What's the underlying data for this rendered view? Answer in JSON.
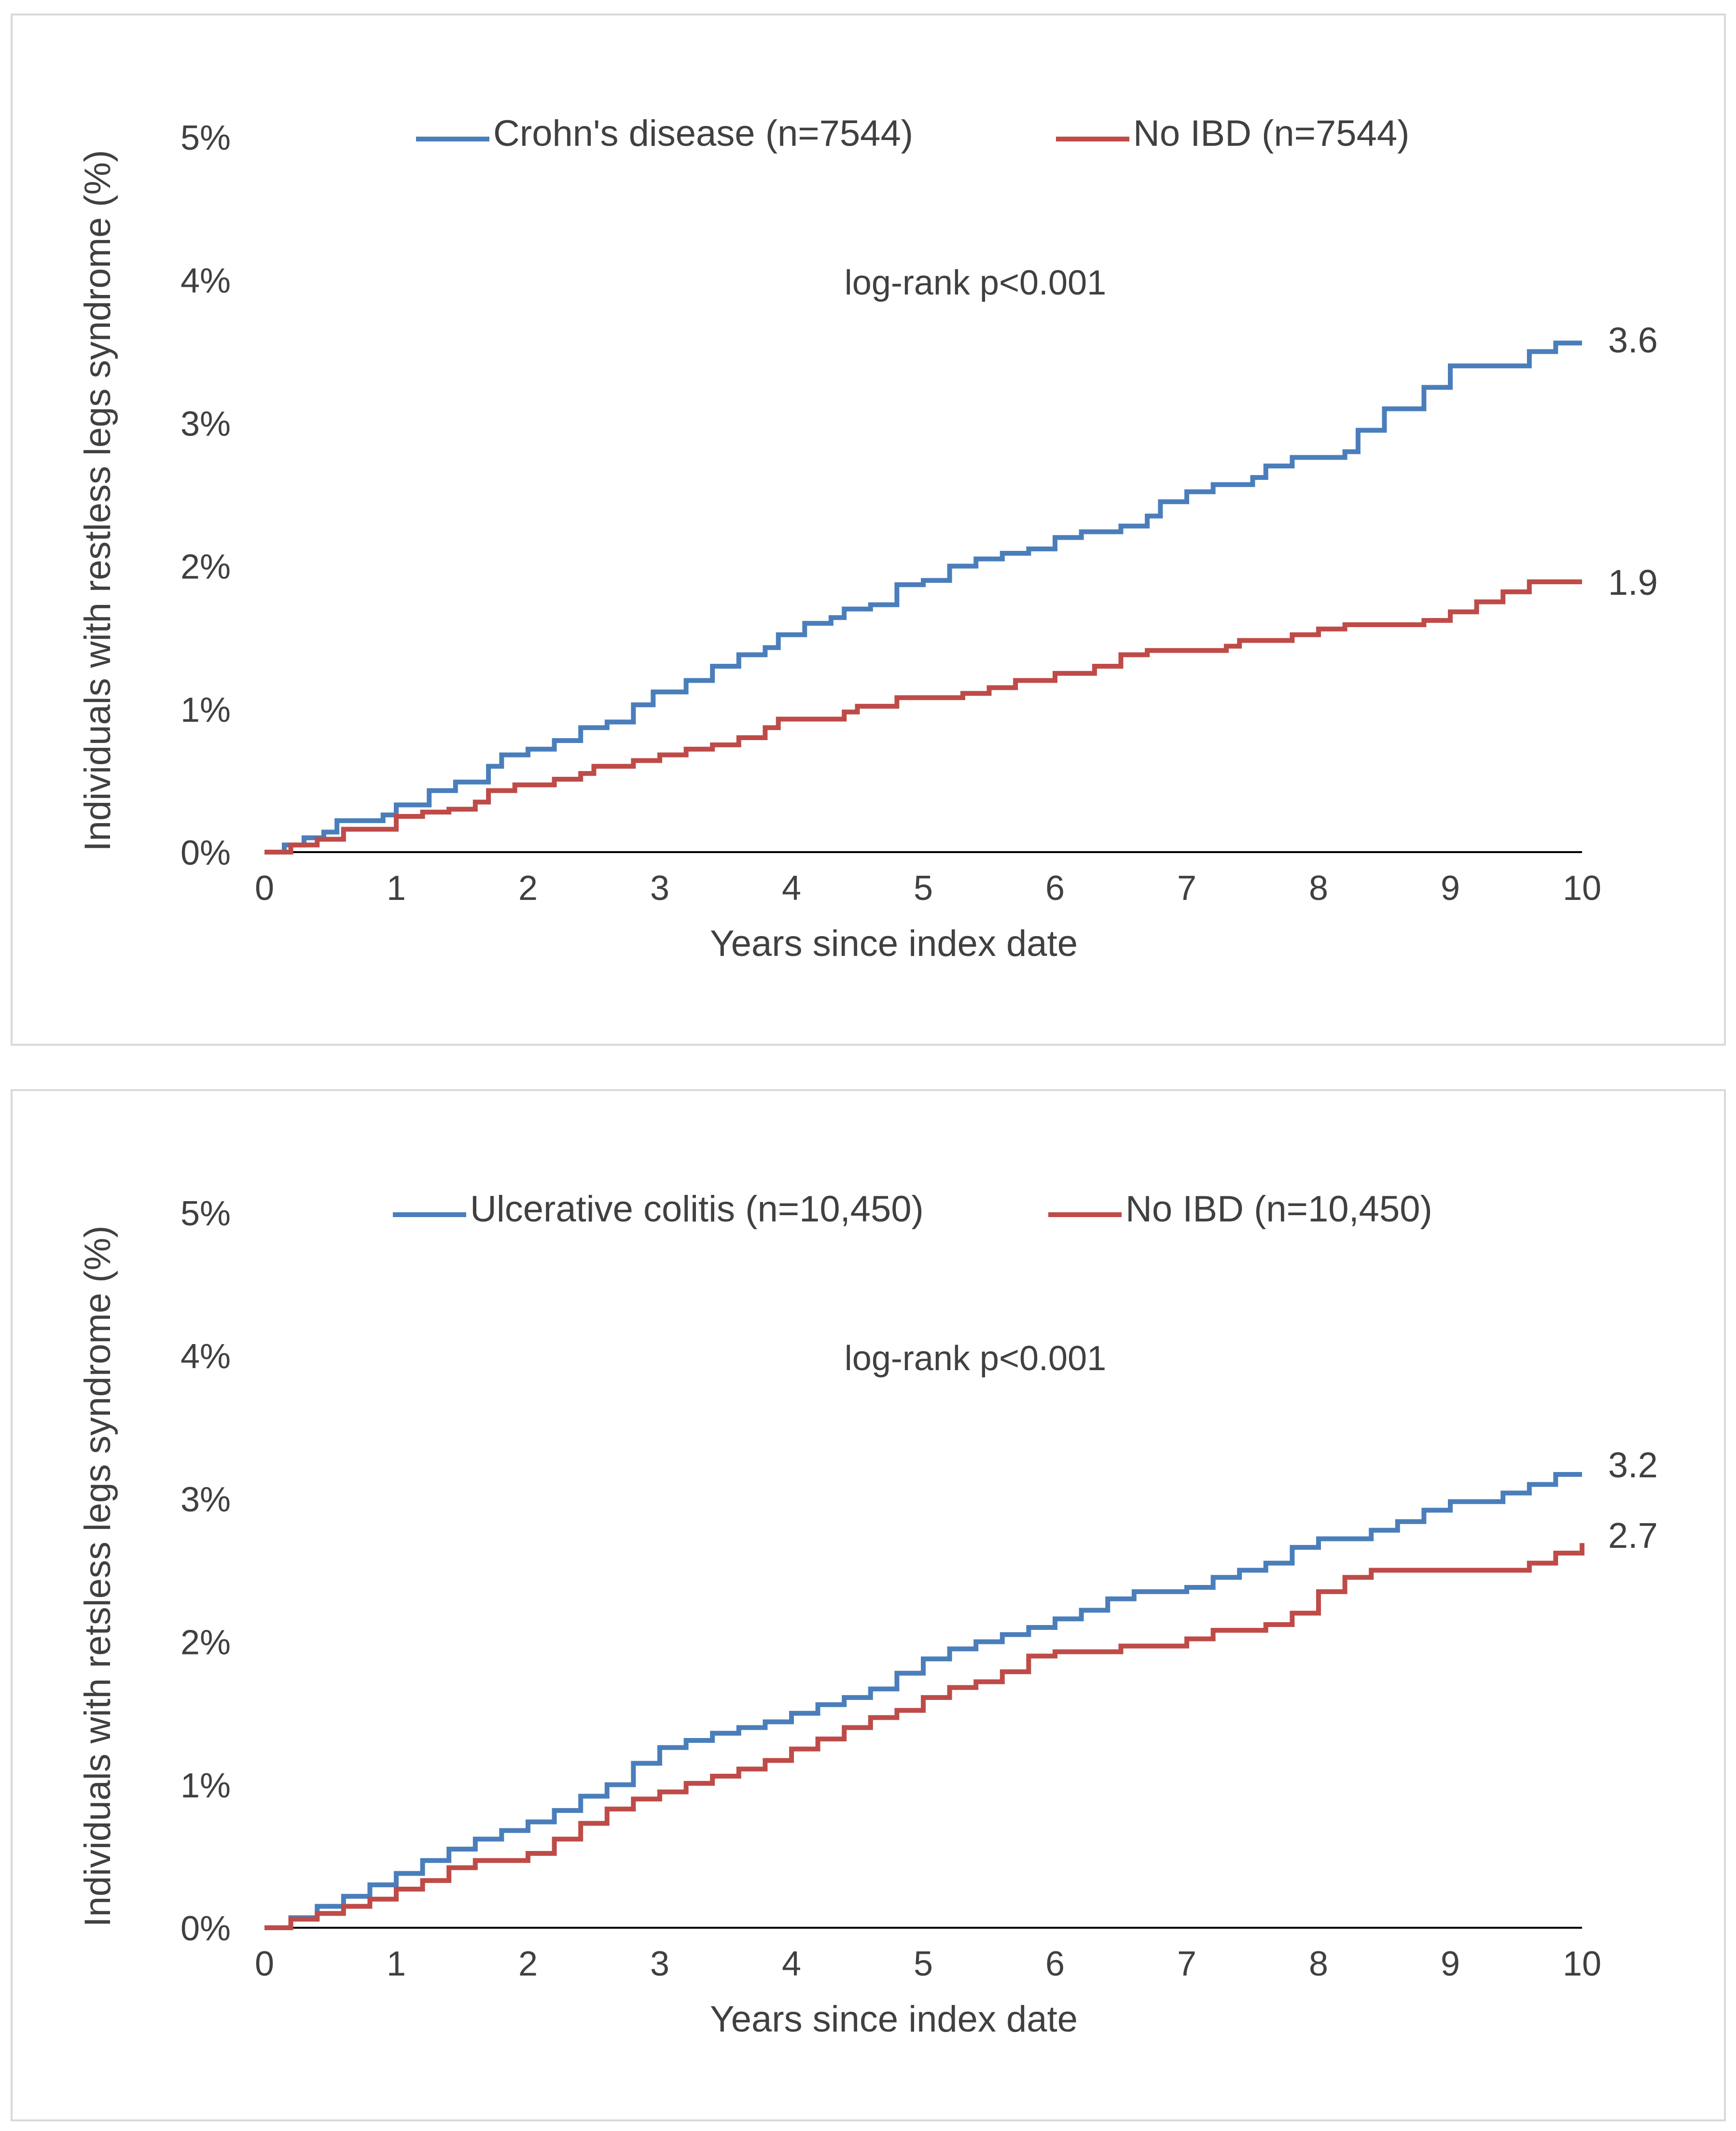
{
  "colors": {
    "series_blue": "#4a7ebb",
    "series_red": "#be4b48",
    "axis": "#000000",
    "text": "#404040",
    "panel_border": "#d9d9d9"
  },
  "chart_data": [
    {
      "type": "line",
      "step": true,
      "title": "",
      "xlabel": "Years since index date",
      "ylabel": "Individuals with restless legs syndrome (%)",
      "xlim": [
        0,
        10
      ],
      "ylim": [
        0,
        5
      ],
      "xticks": [
        "0",
        "1",
        "2",
        "3",
        "4",
        "5",
        "6",
        "7",
        "8",
        "9",
        "10"
      ],
      "yticks": [
        "0%",
        "1%",
        "2%",
        "3%",
        "4%",
        "5%"
      ],
      "legend_position": "top",
      "annotation": "log-rank p<0.001",
      "series": [
        {
          "name": "Crohn's disease (n=7544)",
          "color": "#4a7ebb",
          "end_label": "3.6",
          "points": [
            [
              0,
              0
            ],
            [
              0.15,
              0.05
            ],
            [
              0.3,
              0.1
            ],
            [
              0.45,
              0.14
            ],
            [
              0.55,
              0.22
            ],
            [
              0.9,
              0.26
            ],
            [
              1.0,
              0.33
            ],
            [
              1.25,
              0.43
            ],
            [
              1.45,
              0.49
            ],
            [
              1.7,
              0.6
            ],
            [
              1.8,
              0.68
            ],
            [
              2.0,
              0.72
            ],
            [
              2.2,
              0.78
            ],
            [
              2.4,
              0.87
            ],
            [
              2.6,
              0.91
            ],
            [
              2.8,
              1.03
            ],
            [
              2.95,
              1.12
            ],
            [
              3.2,
              1.2
            ],
            [
              3.4,
              1.3
            ],
            [
              3.6,
              1.38
            ],
            [
              3.8,
              1.43
            ],
            [
              3.9,
              1.52
            ],
            [
              4.1,
              1.6
            ],
            [
              4.3,
              1.64
            ],
            [
              4.4,
              1.7
            ],
            [
              4.6,
              1.73
            ],
            [
              4.8,
              1.87
            ],
            [
              5.0,
              1.9
            ],
            [
              5.2,
              2.0
            ],
            [
              5.4,
              2.05
            ],
            [
              5.6,
              2.09
            ],
            [
              5.8,
              2.12
            ],
            [
              6.0,
              2.2
            ],
            [
              6.2,
              2.24
            ],
            [
              6.5,
              2.28
            ],
            [
              6.7,
              2.35
            ],
            [
              6.8,
              2.45
            ],
            [
              7.0,
              2.52
            ],
            [
              7.2,
              2.57
            ],
            [
              7.5,
              2.62
            ],
            [
              7.6,
              2.7
            ],
            [
              7.8,
              2.76
            ],
            [
              8.2,
              2.8
            ],
            [
              8.3,
              2.95
            ],
            [
              8.5,
              3.1
            ],
            [
              8.8,
              3.25
            ],
            [
              9.0,
              3.4
            ],
            [
              9.6,
              3.5
            ],
            [
              9.8,
              3.56
            ],
            [
              10.0,
              3.56
            ]
          ]
        },
        {
          "name": "No IBD (n=7544)",
          "color": "#be4b48",
          "end_label": "1.9",
          "points": [
            [
              0,
              0
            ],
            [
              0.2,
              0.05
            ],
            [
              0.4,
              0.09
            ],
            [
              0.6,
              0.16
            ],
            [
              1.0,
              0.25
            ],
            [
              1.2,
              0.28
            ],
            [
              1.4,
              0.3
            ],
            [
              1.6,
              0.35
            ],
            [
              1.7,
              0.43
            ],
            [
              1.9,
              0.47
            ],
            [
              2.2,
              0.51
            ],
            [
              2.4,
              0.55
            ],
            [
              2.5,
              0.6
            ],
            [
              2.8,
              0.64
            ],
            [
              3.0,
              0.68
            ],
            [
              3.2,
              0.72
            ],
            [
              3.4,
              0.75
            ],
            [
              3.6,
              0.8
            ],
            [
              3.8,
              0.87
            ],
            [
              3.9,
              0.93
            ],
            [
              4.4,
              0.98
            ],
            [
              4.5,
              1.02
            ],
            [
              4.8,
              1.08
            ],
            [
              5.3,
              1.11
            ],
            [
              5.5,
              1.15
            ],
            [
              5.7,
              1.2
            ],
            [
              6.0,
              1.25
            ],
            [
              6.3,
              1.3
            ],
            [
              6.5,
              1.38
            ],
            [
              6.7,
              1.41
            ],
            [
              7.3,
              1.44
            ],
            [
              7.4,
              1.48
            ],
            [
              7.8,
              1.52
            ],
            [
              8.0,
              1.56
            ],
            [
              8.2,
              1.59
            ],
            [
              8.8,
              1.62
            ],
            [
              9.0,
              1.68
            ],
            [
              9.2,
              1.75
            ],
            [
              9.4,
              1.82
            ],
            [
              9.6,
              1.89
            ],
            [
              10.0,
              1.89
            ]
          ]
        }
      ]
    },
    {
      "type": "line",
      "step": true,
      "title": "",
      "xlabel": "Years since index date",
      "ylabel": "Individuals with retsless legs syndrome (%)",
      "xlim": [
        0,
        10
      ],
      "ylim": [
        0,
        5
      ],
      "xticks": [
        "0",
        "1",
        "2",
        "3",
        "4",
        "5",
        "6",
        "7",
        "8",
        "9",
        "10"
      ],
      "yticks": [
        "0%",
        "1%",
        "2%",
        "3%",
        "4%",
        "5%"
      ],
      "legend_position": "top",
      "annotation": "log-rank p<0.001",
      "series": [
        {
          "name": "Ulcerative colitis (n=10,450)",
          "color": "#4a7ebb",
          "end_label": "3.2",
          "points": [
            [
              0,
              0
            ],
            [
              0.2,
              0.07
            ],
            [
              0.4,
              0.15
            ],
            [
              0.6,
              0.22
            ],
            [
              0.8,
              0.3
            ],
            [
              1.0,
              0.38
            ],
            [
              1.2,
              0.47
            ],
            [
              1.4,
              0.55
            ],
            [
              1.6,
              0.62
            ],
            [
              1.8,
              0.68
            ],
            [
              2.0,
              0.74
            ],
            [
              2.2,
              0.82
            ],
            [
              2.4,
              0.92
            ],
            [
              2.6,
              1.0
            ],
            [
              2.8,
              1.15
            ],
            [
              3.0,
              1.26
            ],
            [
              3.2,
              1.31
            ],
            [
              3.4,
              1.36
            ],
            [
              3.6,
              1.4
            ],
            [
              3.8,
              1.44
            ],
            [
              4.0,
              1.5
            ],
            [
              4.2,
              1.56
            ],
            [
              4.4,
              1.61
            ],
            [
              4.6,
              1.67
            ],
            [
              4.8,
              1.78
            ],
            [
              5.0,
              1.88
            ],
            [
              5.2,
              1.95
            ],
            [
              5.4,
              2.0
            ],
            [
              5.6,
              2.05
            ],
            [
              5.8,
              2.1
            ],
            [
              6.0,
              2.16
            ],
            [
              6.2,
              2.22
            ],
            [
              6.4,
              2.3
            ],
            [
              6.6,
              2.35
            ],
            [
              7.0,
              2.38
            ],
            [
              7.2,
              2.45
            ],
            [
              7.4,
              2.5
            ],
            [
              7.6,
              2.55
            ],
            [
              7.8,
              2.66
            ],
            [
              8.0,
              2.72
            ],
            [
              8.4,
              2.78
            ],
            [
              8.6,
              2.84
            ],
            [
              8.8,
              2.92
            ],
            [
              9.0,
              2.98
            ],
            [
              9.4,
              3.04
            ],
            [
              9.6,
              3.1
            ],
            [
              9.8,
              3.17
            ],
            [
              10.0,
              3.17
            ]
          ]
        },
        {
          "name": "No IBD (n=10,450)",
          "color": "#be4b48",
          "end_label": "2.7",
          "points": [
            [
              0,
              0
            ],
            [
              0.2,
              0.06
            ],
            [
              0.4,
              0.1
            ],
            [
              0.6,
              0.15
            ],
            [
              0.8,
              0.2
            ],
            [
              1.0,
              0.27
            ],
            [
              1.2,
              0.33
            ],
            [
              1.4,
              0.42
            ],
            [
              1.6,
              0.47
            ],
            [
              2.0,
              0.52
            ],
            [
              2.2,
              0.62
            ],
            [
              2.4,
              0.73
            ],
            [
              2.6,
              0.83
            ],
            [
              2.8,
              0.9
            ],
            [
              3.0,
              0.95
            ],
            [
              3.2,
              1.01
            ],
            [
              3.4,
              1.06
            ],
            [
              3.6,
              1.11
            ],
            [
              3.8,
              1.17
            ],
            [
              4.0,
              1.25
            ],
            [
              4.2,
              1.32
            ],
            [
              4.4,
              1.4
            ],
            [
              4.6,
              1.47
            ],
            [
              4.8,
              1.52
            ],
            [
              5.0,
              1.61
            ],
            [
              5.2,
              1.68
            ],
            [
              5.4,
              1.72
            ],
            [
              5.6,
              1.79
            ],
            [
              5.8,
              1.9
            ],
            [
              6.0,
              1.93
            ],
            [
              6.5,
              1.97
            ],
            [
              7.0,
              2.02
            ],
            [
              7.2,
              2.08
            ],
            [
              7.6,
              2.12
            ],
            [
              7.8,
              2.2
            ],
            [
              8.0,
              2.35
            ],
            [
              8.2,
              2.45
            ],
            [
              8.4,
              2.5
            ],
            [
              9.6,
              2.55
            ],
            [
              9.8,
              2.62
            ],
            [
              10.0,
              2.69
            ]
          ]
        }
      ]
    }
  ]
}
